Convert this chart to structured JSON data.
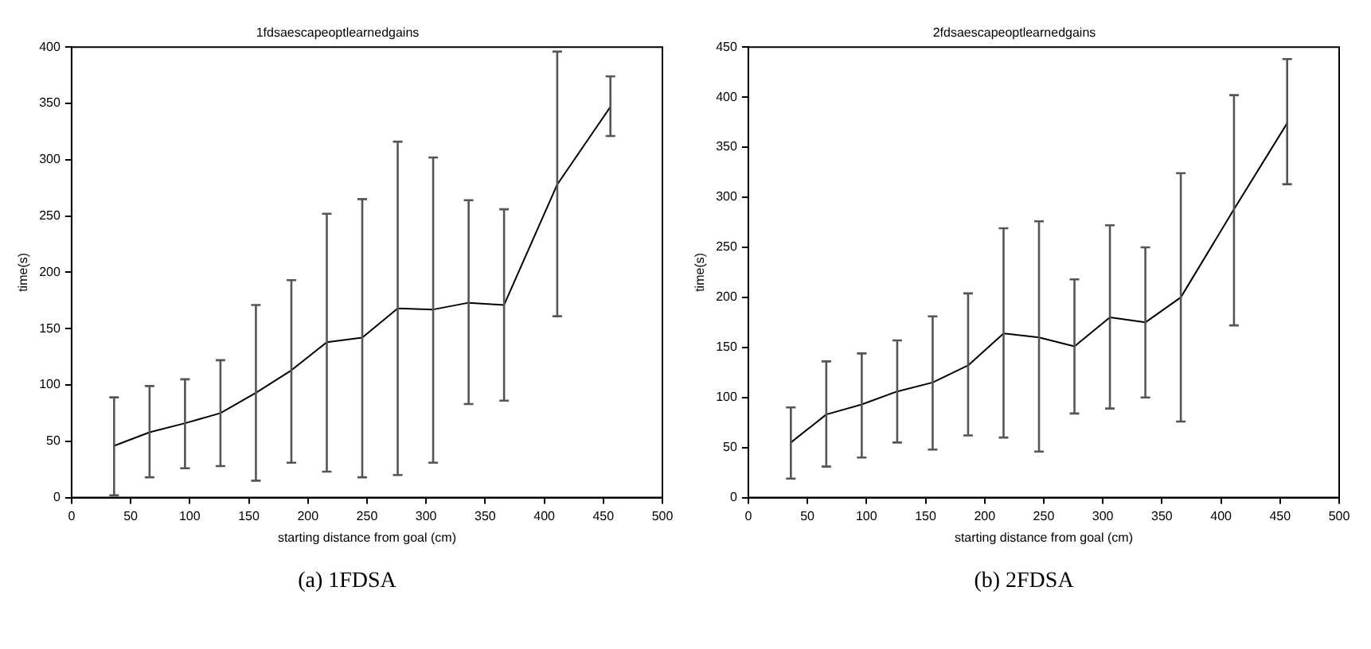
{
  "chart_data": [
    {
      "type": "line",
      "title": "1fdsaescapeoptlearnedgains",
      "xlabel": "starting distance from goal (cm)",
      "ylabel": "time(s)",
      "x": [
        36,
        66,
        96,
        126,
        156,
        186,
        216,
        246,
        276,
        306,
        336,
        366,
        411,
        456
      ],
      "series": [
        {
          "color": "#000000",
          "values": [
            46,
            58,
            66,
            75,
            93,
            113,
            138,
            142,
            168,
            167,
            173,
            171,
            278,
            347
          ],
          "errors": [
            [
              2,
              89
            ],
            [
              18,
              99
            ],
            [
              26,
              105
            ],
            [
              28,
              122
            ],
            [
              15,
              171
            ],
            [
              31,
              193
            ],
            [
              23,
              252
            ],
            [
              18,
              265
            ],
            [
              20,
              316
            ],
            [
              31,
              302
            ],
            [
              83,
              264
            ],
            [
              86,
              256
            ],
            [
              161,
              396
            ],
            [
              321,
              374
            ]
          ]
        }
      ],
      "xlim": [
        0,
        500
      ],
      "xticks": [
        0,
        50,
        100,
        150,
        200,
        250,
        300,
        350,
        400,
        450,
        500
      ],
      "ylim": [
        0,
        400
      ],
      "yticks": [
        0,
        50,
        100,
        150,
        200,
        250,
        300,
        350,
        400
      ],
      "grid": false,
      "legend": false,
      "marker": "none",
      "line_style": "solid",
      "annotations": [
        "(a) 1FDSA"
      ]
    },
    {
      "type": "line",
      "title": "2fdsaescapeoptlearnedgains",
      "xlabel": "starting distance from goal (cm)",
      "ylabel": "time(s)",
      "x": [
        36,
        66,
        96,
        126,
        156,
        186,
        216,
        246,
        276,
        306,
        336,
        366,
        411,
        456
      ],
      "series": [
        {
          "color": "#000000",
          "values": [
            55,
            83,
            93,
            106,
            115,
            132,
            164,
            160,
            151,
            180,
            175,
            200,
            288,
            374
          ],
          "errors": [
            [
              19,
              90
            ],
            [
              31,
              136
            ],
            [
              40,
              144
            ],
            [
              55,
              157
            ],
            [
              48,
              181
            ],
            [
              62,
              204
            ],
            [
              60,
              269
            ],
            [
              46,
              276
            ],
            [
              84,
              218
            ],
            [
              89,
              272
            ],
            [
              100,
              250
            ],
            [
              76,
              324
            ],
            [
              172,
              402
            ],
            [
              313,
              438
            ]
          ]
        }
      ],
      "xlim": [
        0,
        500
      ],
      "xticks": [
        0,
        50,
        100,
        150,
        200,
        250,
        300,
        350,
        400,
        450,
        500
      ],
      "ylim": [
        0,
        450
      ],
      "yticks": [
        0,
        50,
        100,
        150,
        200,
        250,
        300,
        350,
        400,
        450
      ],
      "grid": false,
      "legend": false,
      "marker": "none",
      "line_style": "solid",
      "annotations": [
        "(b) 2FDSA"
      ]
    }
  ]
}
